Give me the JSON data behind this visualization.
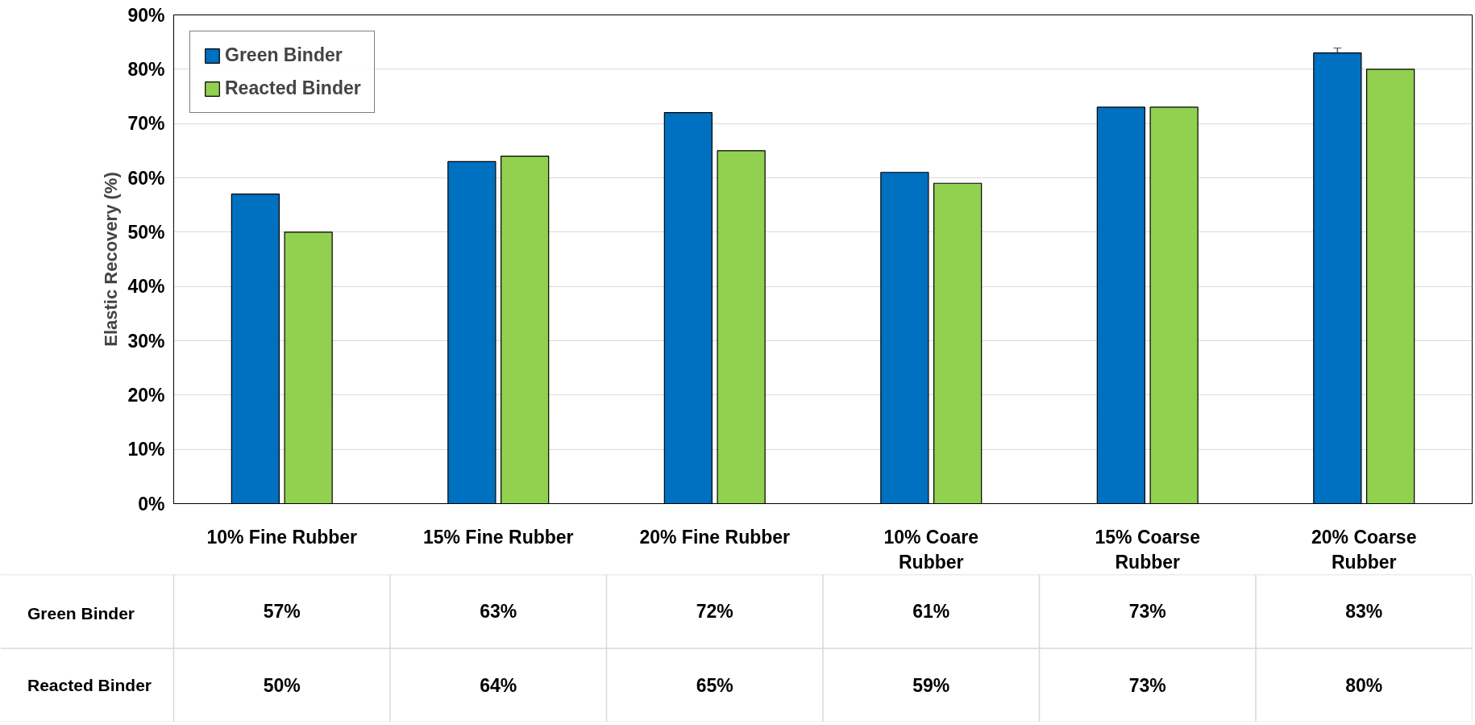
{
  "chart_data": {
    "type": "bar",
    "ylabel": "Elastic Recovery (%)",
    "categories": [
      "10% Fine Rubber",
      "15% Fine Rubber",
      "20% Fine Rubber",
      "10% Coare Rubber",
      "15% Coarse Rubber",
      "20% Coarse Rubber"
    ],
    "series": [
      {
        "name": "Green Binder",
        "color": "#0070c0",
        "values": [
          57,
          63,
          72,
          61,
          73,
          83
        ],
        "errors": [
          null,
          null,
          null,
          null,
          null,
          0.9
        ],
        "value_labels": [
          "57%",
          "63%",
          "72%",
          "61%",
          "73%",
          "83%"
        ]
      },
      {
        "name": "Reacted Binder",
        "color": "#92d050",
        "values": [
          50,
          64,
          65,
          59,
          73,
          80
        ],
        "value_labels": [
          "50%",
          "64%",
          "65%",
          "59%",
          "73%",
          "80%"
        ]
      }
    ],
    "ylim": [
      0,
      90
    ],
    "yticks": [
      {
        "value": 0,
        "label": "0%"
      },
      {
        "value": 10,
        "label": "10%"
      },
      {
        "value": 20,
        "label": "20%"
      },
      {
        "value": 30,
        "label": "30%"
      },
      {
        "value": 40,
        "label": "40%"
      },
      {
        "value": 50,
        "label": "50%"
      },
      {
        "value": 60,
        "label": "60%"
      },
      {
        "value": 70,
        "label": "70%"
      },
      {
        "value": 80,
        "label": "80%"
      },
      {
        "value": 90,
        "label": "90%"
      }
    ],
    "grid": "y",
    "legend": "top left"
  }
}
